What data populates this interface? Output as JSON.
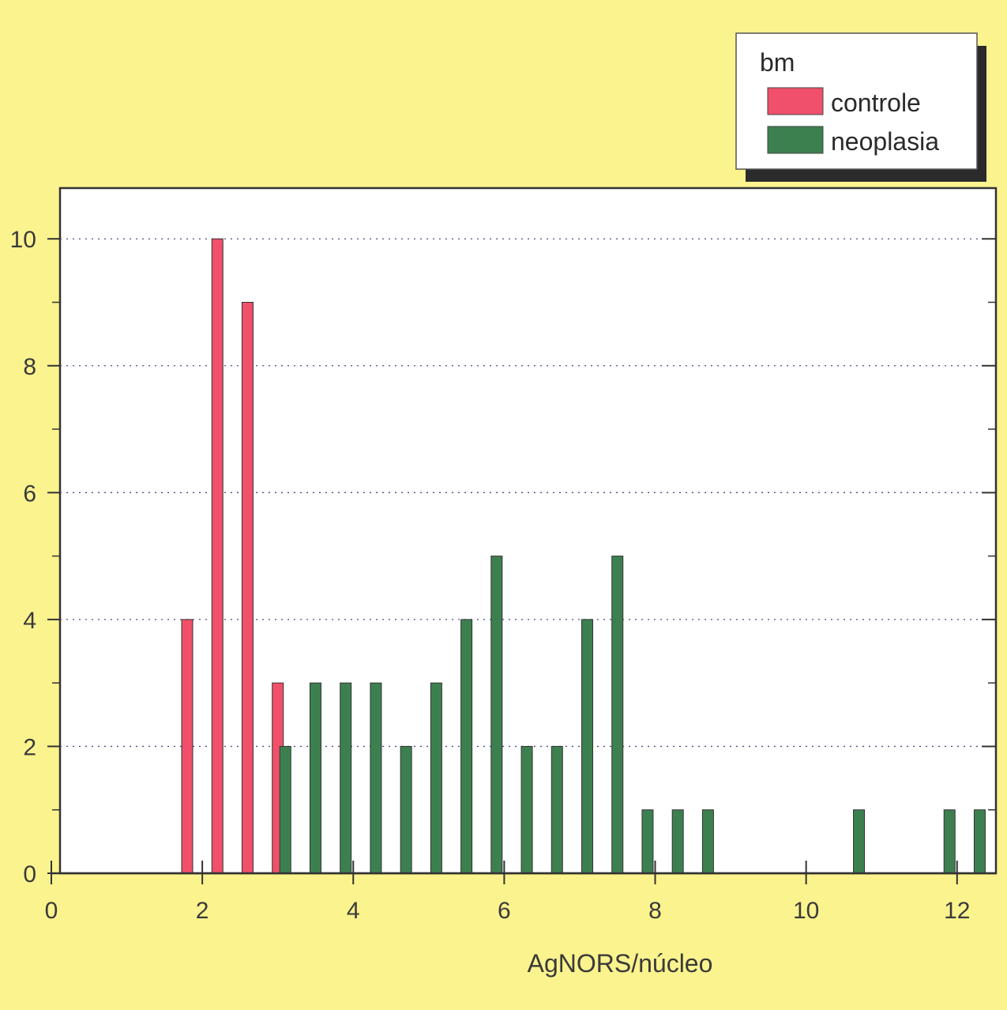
{
  "chart_data": {
    "type": "bar",
    "xlabel": "AgNORS/núcleo",
    "ylabel": "",
    "xlim": [
      0,
      12.4
    ],
    "ylim": [
      0,
      10.8
    ],
    "x_ticks": [
      0,
      2,
      4,
      6,
      8,
      10,
      12
    ],
    "y_ticks": [
      0,
      2,
      4,
      6,
      8,
      10
    ],
    "grid": true,
    "legend": {
      "title": "bm",
      "position": "top-right"
    },
    "series": [
      {
        "name": "controle",
        "color": "#f0506a",
        "x": [
          1.8,
          2.2,
          2.6,
          3.0
        ],
        "values": [
          4,
          10,
          9,
          3
        ]
      },
      {
        "name": "neoplasia",
        "color": "#3d8050",
        "x": [
          3.1,
          3.5,
          3.9,
          4.3,
          4.7,
          5.1,
          5.5,
          5.9,
          6.3,
          6.7,
          7.1,
          7.5,
          7.9,
          8.3,
          8.7,
          10.7,
          11.9,
          12.3
        ],
        "values": [
          2,
          3,
          3,
          3,
          2,
          3,
          4,
          5,
          2,
          2,
          4,
          5,
          1,
          1,
          1,
          1,
          1,
          1
        ]
      }
    ]
  }
}
